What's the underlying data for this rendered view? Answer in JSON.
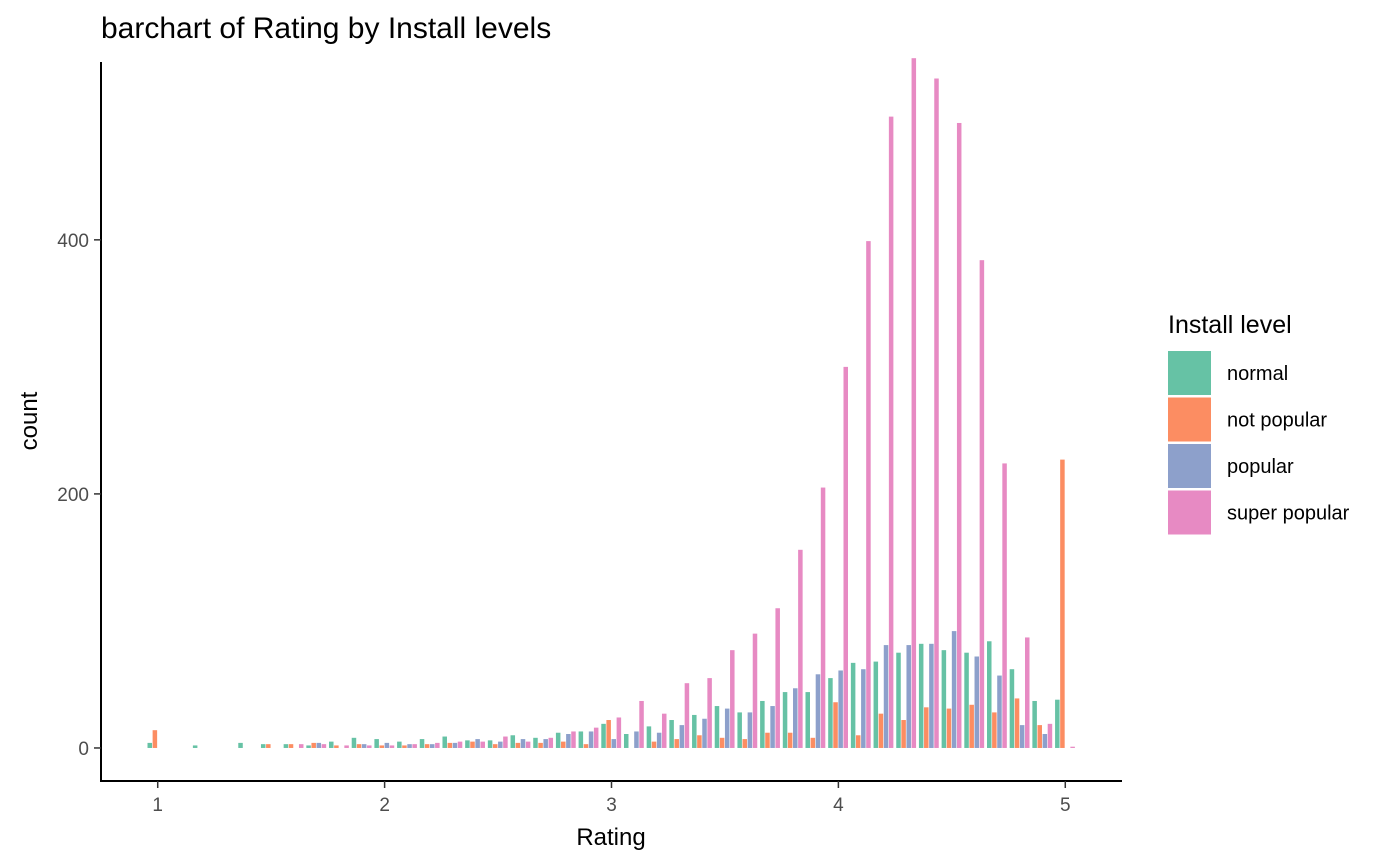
{
  "chart_data": {
    "type": "bar",
    "title": "barchart of Rating by Install levels",
    "xlabel": "Rating",
    "ylabel": "count",
    "xlim": [
      0.75,
      5.25
    ],
    "ylim": [
      -26,
      540
    ],
    "x_ticks": [
      1,
      2,
      3,
      4,
      5
    ],
    "y_ticks": [
      0,
      200,
      400
    ],
    "grid": false,
    "legend": {
      "title": "Install level",
      "position": "right"
    },
    "x": [
      1.0,
      1.2,
      1.4,
      1.5,
      1.6,
      1.7,
      1.8,
      1.9,
      2.0,
      2.1,
      2.2,
      2.3,
      2.4,
      2.5,
      2.6,
      2.7,
      2.8,
      2.9,
      3.0,
      3.1,
      3.2,
      3.3,
      3.4,
      3.5,
      3.6,
      3.7,
      3.8,
      3.9,
      4.0,
      4.1,
      4.2,
      4.3,
      4.4,
      4.5,
      4.6,
      4.7,
      4.8,
      4.9,
      5.0
    ],
    "series": [
      {
        "name": "normal",
        "color": "#66C2A5",
        "values": [
          4,
          2,
          4,
          3,
          3,
          2,
          5,
          8,
          7,
          5,
          7,
          9,
          6,
          6,
          10,
          8,
          12,
          13,
          19,
          11,
          17,
          22,
          26,
          33,
          28,
          37,
          44,
          44,
          55,
          67,
          68,
          75,
          82,
          77,
          75,
          84,
          62,
          37,
          38
        ]
      },
      {
        "name": "not popular",
        "color": "#FC8D62",
        "values": [
          14,
          0,
          0,
          3,
          3,
          4,
          2,
          3,
          2,
          2,
          3,
          4,
          5,
          3,
          4,
          4,
          5,
          3,
          22,
          0,
          5,
          7,
          10,
          8,
          7,
          12,
          12,
          8,
          36,
          10,
          27,
          22,
          32,
          31,
          34,
          28,
          39,
          18,
          227
        ]
      },
      {
        "name": "popular",
        "color": "#8DA0CB",
        "values": [
          0,
          0,
          0,
          0,
          0,
          4,
          0,
          3,
          4,
          3,
          3,
          4,
          7,
          5,
          7,
          7,
          11,
          13,
          7,
          13,
          12,
          18,
          23,
          31,
          28,
          33,
          47,
          58,
          61,
          62,
          81,
          81,
          82,
          92,
          72,
          57,
          18,
          11,
          0
        ]
      },
      {
        "name": "super popular",
        "color": "#E78AC3",
        "values": [
          0,
          0,
          0,
          0,
          3,
          3,
          2,
          2,
          2,
          3,
          4,
          5,
          5,
          9,
          5,
          8,
          13,
          16,
          24,
          37,
          27,
          51,
          55,
          77,
          90,
          110,
          156,
          205,
          300,
          399,
          497,
          543,
          527,
          492,
          384,
          224,
          87,
          19,
          1
        ]
      }
    ]
  }
}
